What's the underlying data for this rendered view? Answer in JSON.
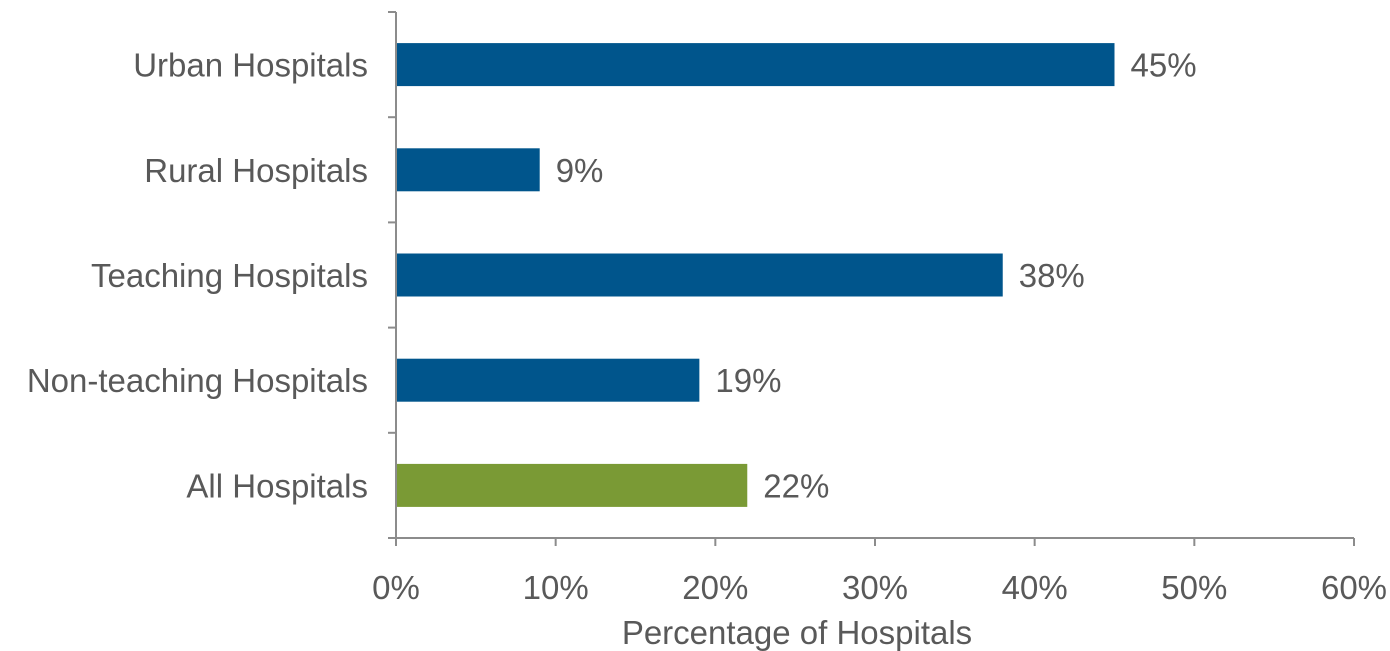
{
  "chart_data": {
    "type": "bar",
    "orientation": "horizontal",
    "categories": [
      "Urban Hospitals",
      "Rural Hospitals",
      "Teaching Hospitals",
      "Non-teaching Hospitals",
      "All Hospitals"
    ],
    "values": [
      45,
      9,
      38,
      19,
      22
    ],
    "value_labels": [
      "45%",
      "9%",
      "38%",
      "19%",
      "22%"
    ],
    "bar_colors": [
      "#00558c",
      "#00558c",
      "#00558c",
      "#00558c",
      "#7a9a35"
    ],
    "xlabel": "Percentage of Hospitals",
    "ylabel": "",
    "xlim": [
      0,
      60
    ],
    "x_ticks": [
      0,
      10,
      20,
      30,
      40,
      50,
      60
    ],
    "x_tick_labels": [
      "0%",
      "10%",
      "20%",
      "30%",
      "40%",
      "50%",
      "60%"
    ],
    "grid": false,
    "legend": "none"
  }
}
